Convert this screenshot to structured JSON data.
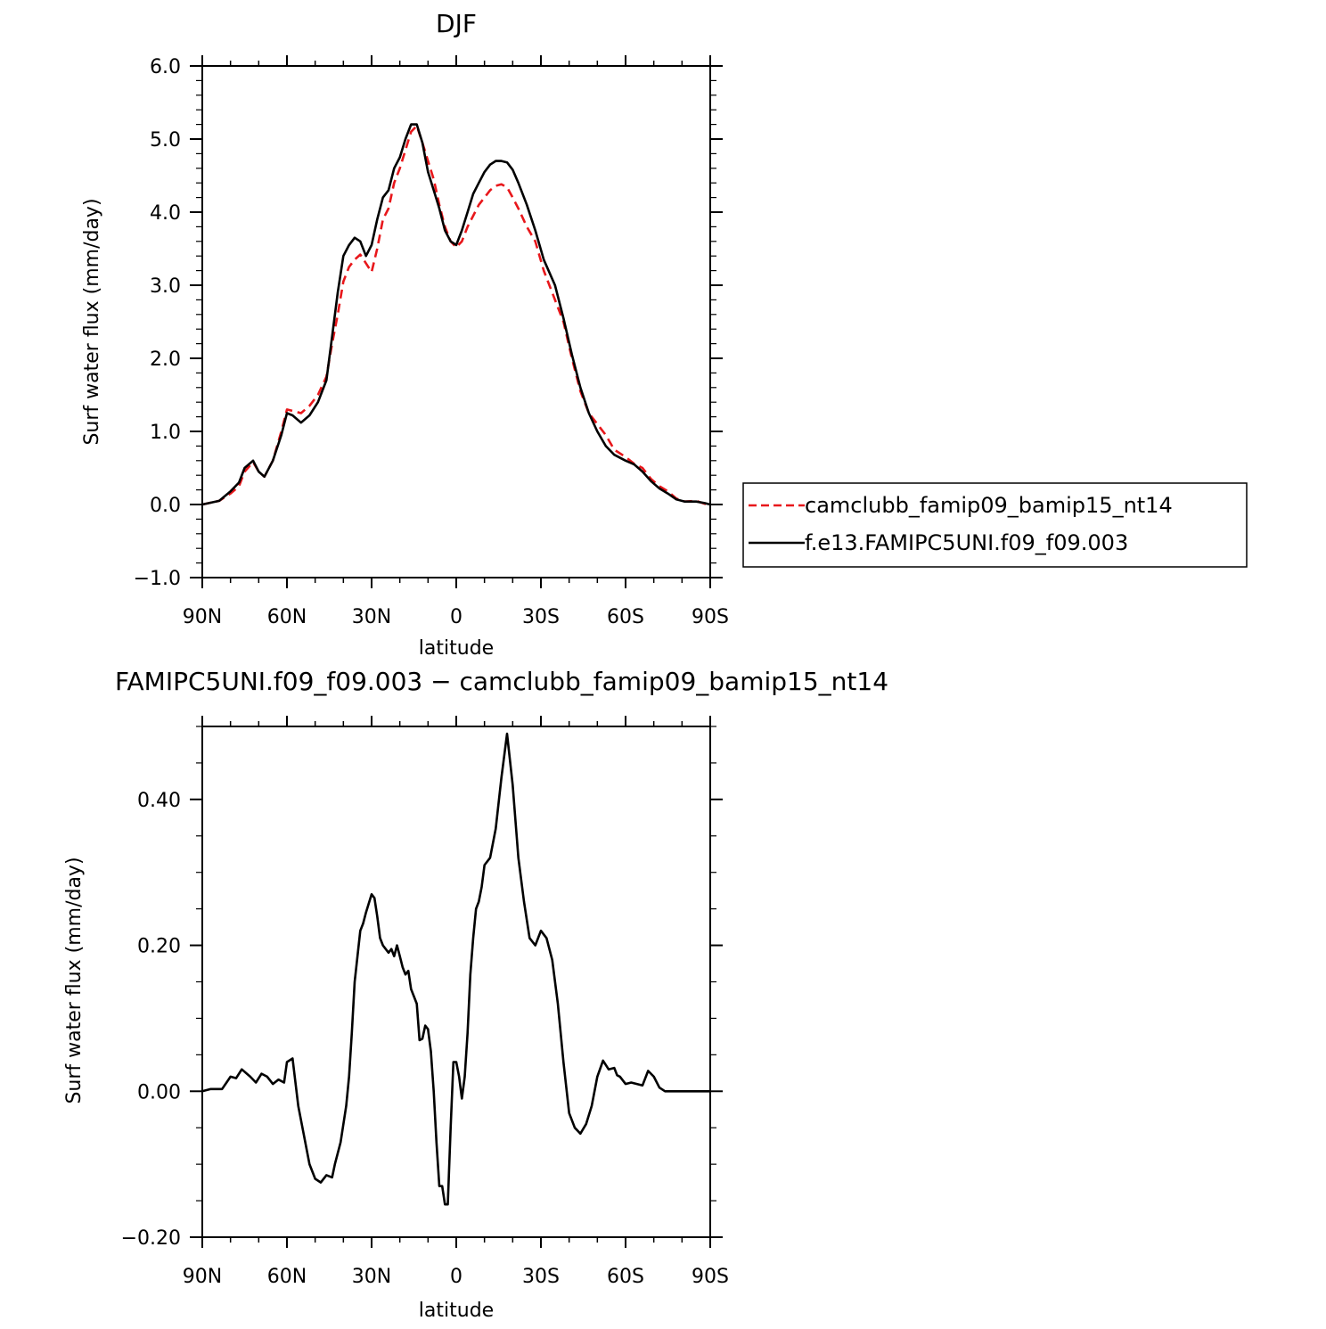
{
  "chart_data": [
    {
      "type": "line",
      "title": "DJF",
      "xlabel": "latitude",
      "ylabel": "Surf water flux (mm/day)",
      "xlim": [
        90,
        -90
      ],
      "ylim": [
        -1.0,
        6.0
      ],
      "xticks": [
        {
          "value": 90,
          "label": "90N"
        },
        {
          "value": 60,
          "label": "60N"
        },
        {
          "value": 30,
          "label": "30N"
        },
        {
          "value": 0,
          "label": "0"
        },
        {
          "value": -30,
          "label": "30S"
        },
        {
          "value": -60,
          "label": "60S"
        },
        {
          "value": -90,
          "label": "90S"
        }
      ],
      "yticks": [
        {
          "value": -1.0,
          "label": "−1.0"
        },
        {
          "value": 0.0,
          "label": "0.0"
        },
        {
          "value": 1.0,
          "label": "1.0"
        },
        {
          "value": 2.0,
          "label": "2.0"
        },
        {
          "value": 3.0,
          "label": "3.0"
        },
        {
          "value": 4.0,
          "label": "4.0"
        },
        {
          "value": 5.0,
          "label": "5.0"
        },
        {
          "value": 6.0,
          "label": "6.0"
        }
      ],
      "legend_position": "right",
      "series": [
        {
          "name": "camclubb_famip09_bamip15_nt14",
          "color": "#e8171b",
          "dash": "dashed",
          "x": [
            90,
            84,
            80,
            77,
            75,
            72,
            70,
            68,
            65,
            62,
            60,
            58,
            55,
            52,
            49,
            46,
            44,
            42,
            40,
            38,
            36,
            34,
            32,
            30,
            28,
            26,
            24,
            22,
            20,
            18,
            16,
            14,
            12,
            10,
            8,
            6,
            4,
            2,
            0,
            -2,
            -4,
            -6,
            -8,
            -10,
            -12,
            -14,
            -16,
            -18,
            -20,
            -22,
            -25,
            -28,
            -31,
            -35,
            -38,
            -41,
            -44,
            -47,
            -50,
            -53,
            -56,
            -60,
            -63,
            -66,
            -69,
            -72,
            -75,
            -78,
            -81,
            -85,
            -88,
            -90
          ],
          "y": [
            0.0,
            0.05,
            0.15,
            0.25,
            0.45,
            0.58,
            0.45,
            0.38,
            0.6,
            1.0,
            1.3,
            1.28,
            1.25,
            1.35,
            1.5,
            1.75,
            2.2,
            2.6,
            3.05,
            3.25,
            3.35,
            3.42,
            3.3,
            3.18,
            3.5,
            3.9,
            4.05,
            4.4,
            4.6,
            4.85,
            5.1,
            5.18,
            4.95,
            4.7,
            4.45,
            4.1,
            3.8,
            3.6,
            3.52,
            3.6,
            3.8,
            3.95,
            4.1,
            4.2,
            4.3,
            4.36,
            4.38,
            4.34,
            4.2,
            4.05,
            3.8,
            3.6,
            3.2,
            2.8,
            2.5,
            2.0,
            1.55,
            1.25,
            1.1,
            0.95,
            0.75,
            0.65,
            0.56,
            0.5,
            0.35,
            0.25,
            0.18,
            0.08,
            0.04,
            0.05,
            0.01,
            0.0
          ]
        },
        {
          "name": "f.e13.FAMIPC5UNI.f09_f09.003",
          "color": "#000000",
          "dash": "solid",
          "x": [
            90,
            84,
            80,
            77,
            75,
            72,
            70,
            68,
            65,
            62,
            60,
            58,
            55,
            52,
            49,
            46,
            44,
            42,
            40,
            38,
            36,
            34,
            32,
            30,
            28,
            26,
            24,
            22,
            20,
            18,
            16,
            14,
            12,
            10,
            8,
            6,
            4,
            2,
            0,
            -2,
            -4,
            -6,
            -8,
            -10,
            -12,
            -14,
            -16,
            -18,
            -20,
            -22,
            -25,
            -28,
            -31,
            -35,
            -38,
            -41,
            -44,
            -47,
            -50,
            -53,
            -56,
            -60,
            -63,
            -66,
            -69,
            -72,
            -75,
            -78,
            -81,
            -85,
            -88,
            -90
          ],
          "y": [
            0.0,
            0.05,
            0.18,
            0.3,
            0.5,
            0.6,
            0.45,
            0.38,
            0.6,
            0.95,
            1.25,
            1.22,
            1.12,
            1.22,
            1.4,
            1.7,
            2.3,
            2.9,
            3.4,
            3.55,
            3.65,
            3.6,
            3.4,
            3.55,
            3.9,
            4.2,
            4.3,
            4.6,
            4.75,
            5.0,
            5.2,
            5.2,
            4.95,
            4.55,
            4.3,
            4.05,
            3.75,
            3.6,
            3.55,
            3.75,
            4.0,
            4.25,
            4.4,
            4.55,
            4.65,
            4.7,
            4.7,
            4.68,
            4.58,
            4.4,
            4.1,
            3.75,
            3.35,
            3.0,
            2.55,
            2.05,
            1.6,
            1.25,
            1.0,
            0.8,
            0.68,
            0.6,
            0.55,
            0.45,
            0.32,
            0.22,
            0.15,
            0.07,
            0.04,
            0.04,
            0.02,
            0.0
          ]
        }
      ]
    },
    {
      "type": "line",
      "title": "FAMIPC5UNI.f09_f09.003 − camclubb_famip09_bamip15_nt14",
      "xlabel": "latitude",
      "ylabel": "Surf water flux (mm/day)",
      "xlim": [
        90,
        -90
      ],
      "ylim": [
        -0.2,
        0.5
      ],
      "xticks": [
        {
          "value": 90,
          "label": "90N"
        },
        {
          "value": 60,
          "label": "60N"
        },
        {
          "value": 30,
          "label": "30N"
        },
        {
          "value": 0,
          "label": "0"
        },
        {
          "value": -30,
          "label": "30S"
        },
        {
          "value": -60,
          "label": "60S"
        },
        {
          "value": -90,
          "label": "90S"
        }
      ],
      "yticks": [
        {
          "value": -0.2,
          "label": "−0.20"
        },
        {
          "value": 0.0,
          "label": "0.00"
        },
        {
          "value": 0.2,
          "label": "0.20"
        },
        {
          "value": 0.4,
          "label": "0.40"
        }
      ],
      "series": [
        {
          "name": "",
          "color": "#000000",
          "dash": "solid",
          "x": [
            90,
            87,
            83,
            80,
            78,
            76,
            73,
            71,
            69,
            67,
            65,
            63,
            61,
            60,
            58,
            56,
            54,
            52,
            50,
            48,
            46,
            44,
            43,
            41,
            39,
            38,
            37,
            36,
            34,
            33,
            32,
            30,
            29,
            28,
            27,
            26,
            25,
            24,
            23,
            22,
            21,
            20,
            19,
            18,
            17,
            16,
            15,
            14,
            13,
            12,
            11,
            10,
            9,
            8,
            7,
            6,
            5,
            4,
            3,
            2,
            1,
            0,
            -1,
            -2,
            -3,
            -4,
            -5,
            -6,
            -7,
            -8,
            -9,
            -10,
            -12,
            -14,
            -16,
            -18,
            -20,
            -22,
            -24,
            -26,
            -28,
            -30,
            -32,
            -34,
            -36,
            -38,
            -40,
            -42,
            -44,
            -46,
            -48,
            -50,
            -52,
            -54,
            -56,
            -57,
            -58,
            -60,
            -62,
            -64,
            -66,
            -68,
            -70,
            -72,
            -74,
            -76,
            -78,
            -80,
            -82,
            -84,
            -85,
            -86,
            -87,
            -88,
            -90
          ],
          "y": [
            0.0,
            0.003,
            0.003,
            0.02,
            0.018,
            0.03,
            0.02,
            0.012,
            0.024,
            0.02,
            0.01,
            0.016,
            0.012,
            0.04,
            0.045,
            -0.02,
            -0.06,
            -0.1,
            -0.12,
            -0.125,
            -0.115,
            -0.118,
            -0.1,
            -0.07,
            -0.02,
            0.02,
            0.08,
            0.15,
            0.22,
            0.23,
            0.245,
            0.27,
            0.265,
            0.24,
            0.21,
            0.2,
            0.195,
            0.19,
            0.195,
            0.185,
            0.2,
            0.185,
            0.17,
            0.16,
            0.165,
            0.14,
            0.13,
            0.12,
            0.07,
            0.072,
            0.09,
            0.085,
            0.055,
            0.0,
            -0.07,
            -0.13,
            -0.13,
            -0.155,
            -0.155,
            -0.05,
            0.04,
            0.04,
            0.02,
            -0.01,
            0.02,
            0.08,
            0.16,
            0.21,
            0.25,
            0.26,
            0.28,
            0.31,
            0.32,
            0.36,
            0.43,
            0.49,
            0.42,
            0.32,
            0.26,
            0.21,
            0.2,
            0.22,
            0.21,
            0.18,
            0.12,
            0.04,
            -0.03,
            -0.05,
            -0.058,
            -0.045,
            -0.02,
            0.02,
            0.042,
            0.03,
            0.032,
            0.022,
            0.02,
            0.01,
            0.012,
            0.01,
            0.008,
            0.028,
            0.02,
            0.005,
            0.0,
            0.0,
            0.0,
            0.0,
            0.0,
            0.0,
            0.0,
            0.0,
            0.0,
            0.0,
            0.0
          ]
        }
      ]
    }
  ],
  "labels": {
    "top_title": "DJF",
    "bottom_title": "FAMIPC5UNI.f09_f09.003 − camclubb_famip09_bamip15_nt14",
    "top_ylabel": "Surf water flux (mm/day)",
    "bottom_ylabel": "Surf water flux (mm/day)",
    "top_xlabel": "latitude",
    "bottom_xlabel": "latitude",
    "legend_1": "camclubb_famip09_bamip15_nt14",
    "legend_2": "f.e13.FAMIPC5UNI.f09_f09.003"
  }
}
